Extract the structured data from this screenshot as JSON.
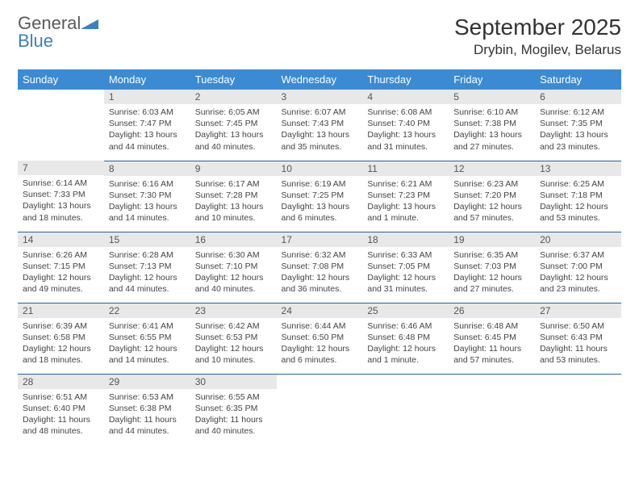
{
  "logo": {
    "general": "General",
    "blue": "Blue"
  },
  "title": "September 2025",
  "location": "Drybin, Mogilev, Belarus",
  "day_headers": [
    "Sunday",
    "Monday",
    "Tuesday",
    "Wednesday",
    "Thursday",
    "Friday",
    "Saturday"
  ],
  "colors": {
    "header_bg": "#3b8bd4",
    "header_text": "#ffffff",
    "daynum_bg": "#e8e8e8",
    "row_border": "#2a5f9e",
    "logo_blue": "#3b7fc4"
  },
  "weeks": [
    [
      {
        "empty": true
      },
      {
        "num": "1",
        "sunrise": "Sunrise: 6:03 AM",
        "sunset": "Sunset: 7:47 PM",
        "daylight": "Daylight: 13 hours and 44 minutes."
      },
      {
        "num": "2",
        "sunrise": "Sunrise: 6:05 AM",
        "sunset": "Sunset: 7:45 PM",
        "daylight": "Daylight: 13 hours and 40 minutes."
      },
      {
        "num": "3",
        "sunrise": "Sunrise: 6:07 AM",
        "sunset": "Sunset: 7:43 PM",
        "daylight": "Daylight: 13 hours and 35 minutes."
      },
      {
        "num": "4",
        "sunrise": "Sunrise: 6:08 AM",
        "sunset": "Sunset: 7:40 PM",
        "daylight": "Daylight: 13 hours and 31 minutes."
      },
      {
        "num": "5",
        "sunrise": "Sunrise: 6:10 AM",
        "sunset": "Sunset: 7:38 PM",
        "daylight": "Daylight: 13 hours and 27 minutes."
      },
      {
        "num": "6",
        "sunrise": "Sunrise: 6:12 AM",
        "sunset": "Sunset: 7:35 PM",
        "daylight": "Daylight: 13 hours and 23 minutes."
      }
    ],
    [
      {
        "num": "7",
        "sunrise": "Sunrise: 6:14 AM",
        "sunset": "Sunset: 7:33 PM",
        "daylight": "Daylight: 13 hours and 18 minutes."
      },
      {
        "num": "8",
        "sunrise": "Sunrise: 6:16 AM",
        "sunset": "Sunset: 7:30 PM",
        "daylight": "Daylight: 13 hours and 14 minutes."
      },
      {
        "num": "9",
        "sunrise": "Sunrise: 6:17 AM",
        "sunset": "Sunset: 7:28 PM",
        "daylight": "Daylight: 13 hours and 10 minutes."
      },
      {
        "num": "10",
        "sunrise": "Sunrise: 6:19 AM",
        "sunset": "Sunset: 7:25 PM",
        "daylight": "Daylight: 13 hours and 6 minutes."
      },
      {
        "num": "11",
        "sunrise": "Sunrise: 6:21 AM",
        "sunset": "Sunset: 7:23 PM",
        "daylight": "Daylight: 13 hours and 1 minute."
      },
      {
        "num": "12",
        "sunrise": "Sunrise: 6:23 AM",
        "sunset": "Sunset: 7:20 PM",
        "daylight": "Daylight: 12 hours and 57 minutes."
      },
      {
        "num": "13",
        "sunrise": "Sunrise: 6:25 AM",
        "sunset": "Sunset: 7:18 PM",
        "daylight": "Daylight: 12 hours and 53 minutes."
      }
    ],
    [
      {
        "num": "14",
        "sunrise": "Sunrise: 6:26 AM",
        "sunset": "Sunset: 7:15 PM",
        "daylight": "Daylight: 12 hours and 49 minutes."
      },
      {
        "num": "15",
        "sunrise": "Sunrise: 6:28 AM",
        "sunset": "Sunset: 7:13 PM",
        "daylight": "Daylight: 12 hours and 44 minutes."
      },
      {
        "num": "16",
        "sunrise": "Sunrise: 6:30 AM",
        "sunset": "Sunset: 7:10 PM",
        "daylight": "Daylight: 12 hours and 40 minutes."
      },
      {
        "num": "17",
        "sunrise": "Sunrise: 6:32 AM",
        "sunset": "Sunset: 7:08 PM",
        "daylight": "Daylight: 12 hours and 36 minutes."
      },
      {
        "num": "18",
        "sunrise": "Sunrise: 6:33 AM",
        "sunset": "Sunset: 7:05 PM",
        "daylight": "Daylight: 12 hours and 31 minutes."
      },
      {
        "num": "19",
        "sunrise": "Sunrise: 6:35 AM",
        "sunset": "Sunset: 7:03 PM",
        "daylight": "Daylight: 12 hours and 27 minutes."
      },
      {
        "num": "20",
        "sunrise": "Sunrise: 6:37 AM",
        "sunset": "Sunset: 7:00 PM",
        "daylight": "Daylight: 12 hours and 23 minutes."
      }
    ],
    [
      {
        "num": "21",
        "sunrise": "Sunrise: 6:39 AM",
        "sunset": "Sunset: 6:58 PM",
        "daylight": "Daylight: 12 hours and 18 minutes."
      },
      {
        "num": "22",
        "sunrise": "Sunrise: 6:41 AM",
        "sunset": "Sunset: 6:55 PM",
        "daylight": "Daylight: 12 hours and 14 minutes."
      },
      {
        "num": "23",
        "sunrise": "Sunrise: 6:42 AM",
        "sunset": "Sunset: 6:53 PM",
        "daylight": "Daylight: 12 hours and 10 minutes."
      },
      {
        "num": "24",
        "sunrise": "Sunrise: 6:44 AM",
        "sunset": "Sunset: 6:50 PM",
        "daylight": "Daylight: 12 hours and 6 minutes."
      },
      {
        "num": "25",
        "sunrise": "Sunrise: 6:46 AM",
        "sunset": "Sunset: 6:48 PM",
        "daylight": "Daylight: 12 hours and 1 minute."
      },
      {
        "num": "26",
        "sunrise": "Sunrise: 6:48 AM",
        "sunset": "Sunset: 6:45 PM",
        "daylight": "Daylight: 11 hours and 57 minutes."
      },
      {
        "num": "27",
        "sunrise": "Sunrise: 6:50 AM",
        "sunset": "Sunset: 6:43 PM",
        "daylight": "Daylight: 11 hours and 53 minutes."
      }
    ],
    [
      {
        "num": "28",
        "sunrise": "Sunrise: 6:51 AM",
        "sunset": "Sunset: 6:40 PM",
        "daylight": "Daylight: 11 hours and 48 minutes."
      },
      {
        "num": "29",
        "sunrise": "Sunrise: 6:53 AM",
        "sunset": "Sunset: 6:38 PM",
        "daylight": "Daylight: 11 hours and 44 minutes."
      },
      {
        "num": "30",
        "sunrise": "Sunrise: 6:55 AM",
        "sunset": "Sunset: 6:35 PM",
        "daylight": "Daylight: 11 hours and 40 minutes."
      },
      {
        "empty": true
      },
      {
        "empty": true
      },
      {
        "empty": true
      },
      {
        "empty": true
      }
    ]
  ]
}
